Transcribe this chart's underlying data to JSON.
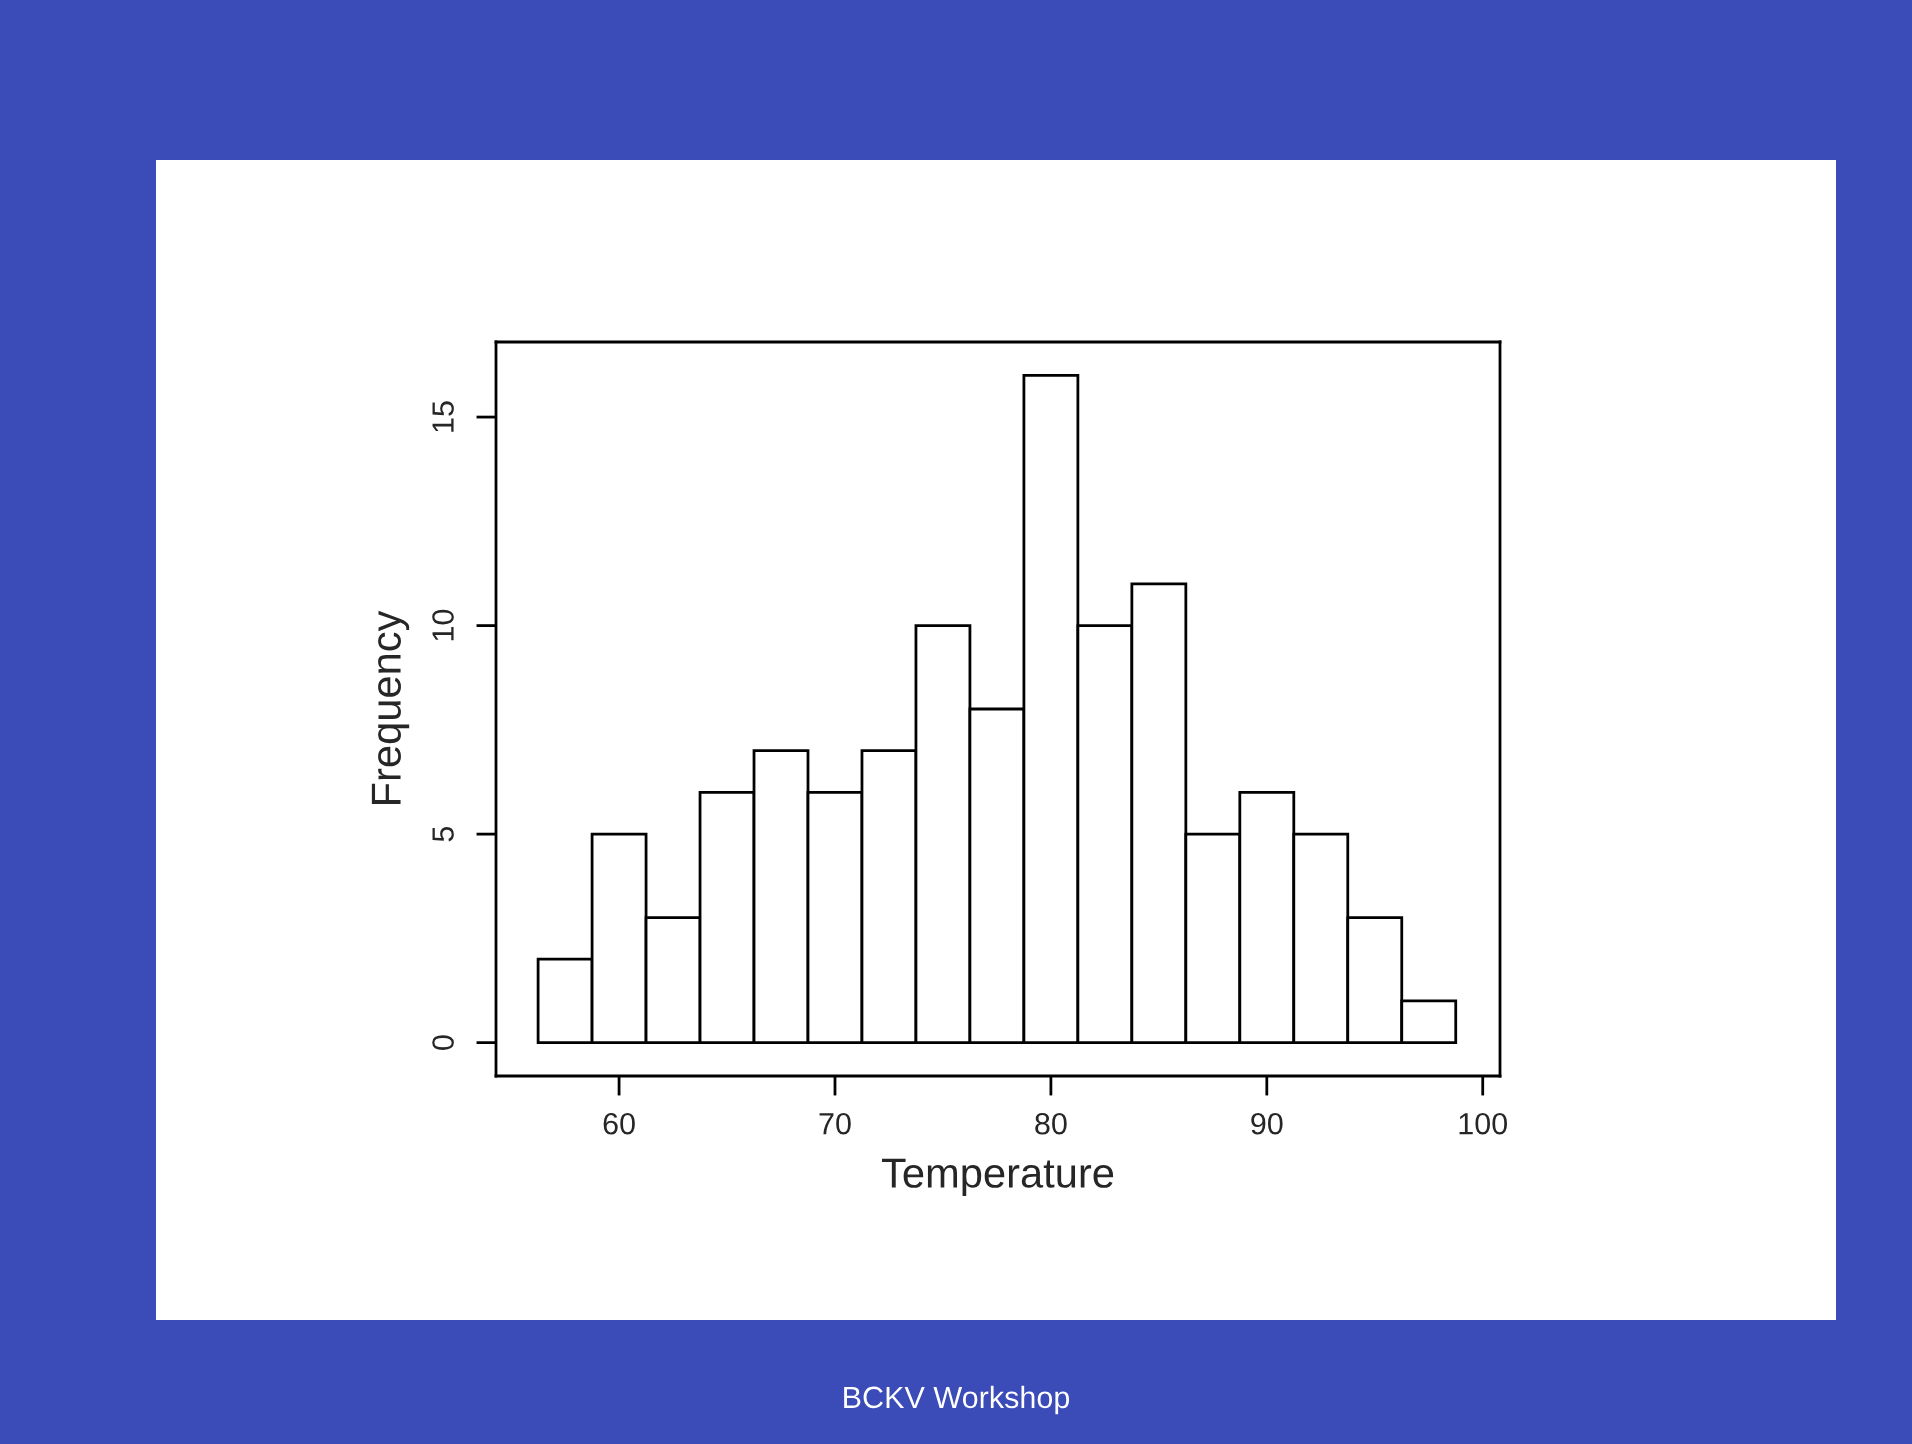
{
  "chart_data": {
    "type": "histogram",
    "xlabel": "Temperature",
    "ylabel": "Frequency",
    "bins": [
      56.25,
      58.75,
      61.25,
      63.75,
      66.25,
      68.75,
      71.25,
      73.75,
      76.25,
      78.75,
      81.25,
      83.75,
      86.25,
      88.75,
      91.25,
      93.75,
      96.25,
      98.75
    ],
    "values": [
      2,
      5,
      3,
      6,
      7,
      6,
      7,
      10,
      8,
      16,
      10,
      11,
      5,
      6,
      5,
      3,
      1
    ],
    "color": "#ffffff",
    "xlim": [
      54.3,
      100.8
    ],
    "xticks": [
      60,
      70,
      80,
      90,
      100
    ],
    "ylim": [
      -0.8,
      16.8
    ],
    "yticks": [
      0,
      5,
      10,
      15
    ],
    "grid": false,
    "annotations": [
      "BCKV Workshop"
    ]
  }
}
